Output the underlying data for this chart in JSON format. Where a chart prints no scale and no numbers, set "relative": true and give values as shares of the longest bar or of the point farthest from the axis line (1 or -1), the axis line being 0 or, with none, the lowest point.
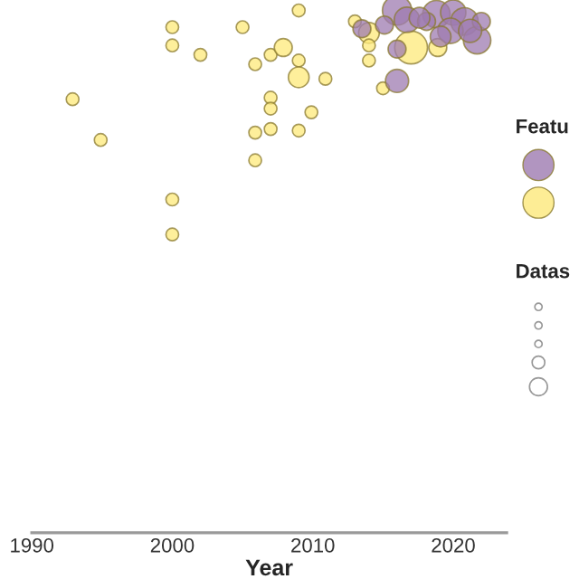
{
  "chart_data": {
    "type": "bubble",
    "relative": true,
    "xlabel": "Year",
    "annotations": [
      "Featu",
      "Datas"
    ],
    "xlim": [
      1990,
      2023.8
    ],
    "xticks": [
      1990,
      2000,
      2010,
      2020
    ],
    "grid": false,
    "series": [
      {
        "color": "#9e7bb0",
        "x": [
          2016.0,
          2016.7,
          2013.5,
          2016.0,
          2016.0,
          2018.8,
          2020.0,
          2020.8,
          2021.7,
          2019.8,
          2018.1,
          2022.0,
          2021.2,
          2019.1,
          2015.1,
          2017.6
        ],
        "values": [
          1.0,
          0.982,
          0.965,
          0.926,
          0.865,
          0.993,
          0.996,
          0.979,
          0.943,
          0.961,
          0.979,
          0.979,
          0.961,
          0.95,
          0.972,
          0.986
        ],
        "sizes": [
          0.8,
          0.6,
          0.3,
          0.3,
          0.5,
          0.7,
          0.6,
          0.7,
          0.7,
          0.6,
          0.3,
          0.3,
          0.5,
          0.4,
          0.3,
          0.4
        ]
      },
      {
        "color": "#fde97a",
        "x": [
          2000.0,
          2000.0,
          2002.0,
          2005.0,
          2005.9,
          2007.0,
          2007.9,
          2009.0,
          2009.0,
          2009.0,
          2007.0,
          2007.0,
          2005.9,
          2007.0,
          2009.0,
          2005.9,
          1992.9,
          1994.9,
          2000.0,
          2000.0,
          2010.9,
          2009.9,
          2013.0,
          2014.0,
          2014.0,
          2014.0,
          2015.0,
          2017.0,
          2018.9
        ],
        "values": [
          0.968,
          0.933,
          0.915,
          0.968,
          0.897,
          0.915,
          0.929,
          1.0,
          0.904,
          0.872,
          0.833,
          0.812,
          0.766,
          0.773,
          0.77,
          0.713,
          0.83,
          0.752,
          0.638,
          0.571,
          0.869,
          0.805,
          0.979,
          0.957,
          0.933,
          0.904,
          0.851,
          0.929,
          0.929
        ],
        "sizes": [
          0.15,
          0.15,
          0.15,
          0.15,
          0.15,
          0.15,
          0.3,
          0.15,
          0.15,
          0.4,
          0.15,
          0.15,
          0.15,
          0.15,
          0.15,
          0.15,
          0.15,
          0.15,
          0.15,
          0.15,
          0.15,
          0.15,
          0.15,
          0.4,
          0.15,
          0.15,
          0.15,
          1.0,
          0.3
        ]
      }
    ]
  }
}
